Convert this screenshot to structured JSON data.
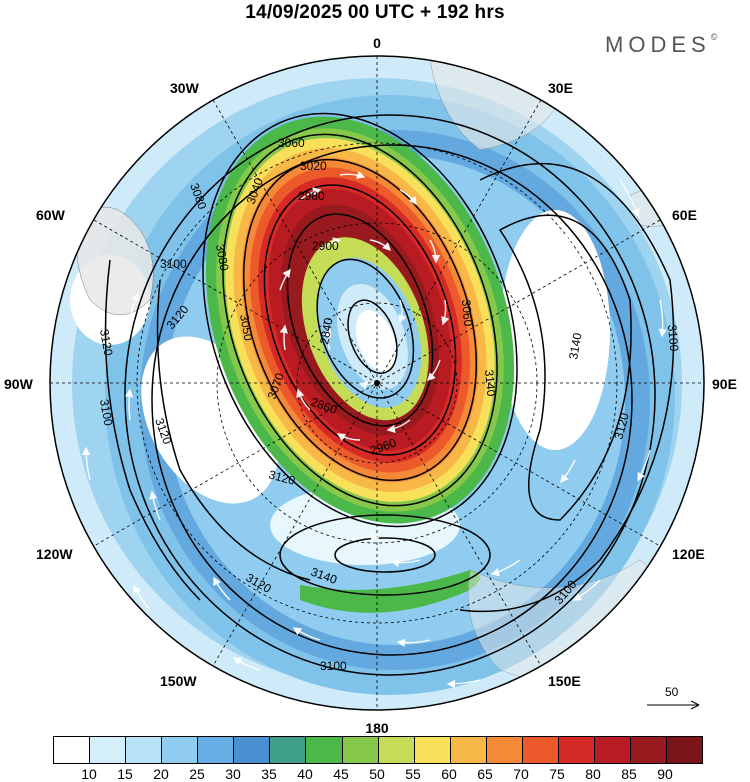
{
  "header": {
    "title": "14/09/2025  00 UTC  + 192 hrs"
  },
  "brand": {
    "name": "MODES",
    "mark": "©"
  },
  "map": {
    "projection": "polar-stereographic-south",
    "longitude_labels": [
      {
        "text": "0",
        "lon": 0
      },
      {
        "text": "30E",
        "lon": 30
      },
      {
        "text": "60E",
        "lon": 60
      },
      {
        "text": "90E",
        "lon": 90
      },
      {
        "text": "120E",
        "lon": 120
      },
      {
        "text": "150E",
        "lon": 150
      },
      {
        "text": "180",
        "lon": 180
      },
      {
        "text": "150W",
        "lon": -150
      },
      {
        "text": "120W",
        "lon": -120
      },
      {
        "text": "90W",
        "lon": -90
      },
      {
        "text": "60W",
        "lon": -60
      },
      {
        "text": "30W",
        "lon": -30
      }
    ],
    "contour_labels": [
      "3060",
      "3040",
      "3080",
      "3020",
      "2980",
      "2900",
      "2840",
      "3100",
      "3080",
      "3050",
      "3120",
      "3060",
      "3140",
      "3100",
      "3120",
      "3140",
      "3120",
      "3100",
      "3100",
      "3120",
      "3140",
      "3100",
      "3120",
      "2860",
      "2960",
      "3070",
      "3120"
    ],
    "colors": {
      "land": "#e8e8e8",
      "contour": "#000000",
      "grid": "#000000",
      "wind_arrow": "#ffffff"
    }
  },
  "legend": {
    "values": [
      "10",
      "15",
      "20",
      "25",
      "30",
      "35",
      "40",
      "45",
      "50",
      "55",
      "60",
      "65",
      "70",
      "75",
      "80",
      "85",
      "90"
    ],
    "colors": [
      "#ffffff",
      "#d4eefa",
      "#b7e2f7",
      "#8fccef",
      "#66aee3",
      "#4a8fcf",
      "#3fa08a",
      "#4db84a",
      "#86c84a",
      "#c4dc56",
      "#f8e05a",
      "#f8b848",
      "#f48a38",
      "#ec5a2c",
      "#d62a26",
      "#b81c22",
      "#981a1e"
    ]
  },
  "reference_vector": {
    "label": "50"
  }
}
